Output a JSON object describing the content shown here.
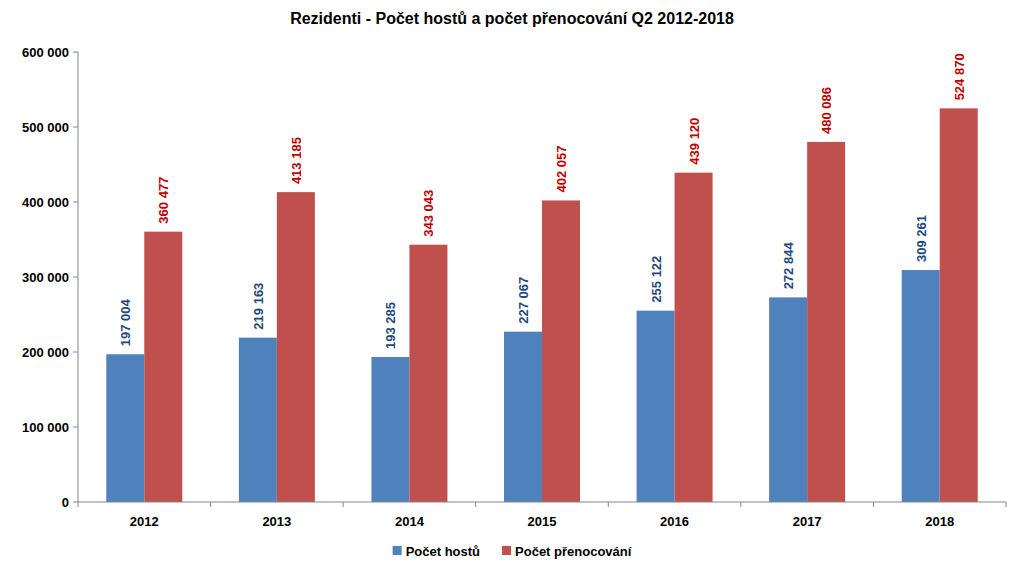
{
  "chart_data": {
    "type": "bar",
    "title": "Rezidenti - Počet hostů a počet přenocování Q2 2012-2018",
    "categories": [
      "2012",
      "2013",
      "2014",
      "2015",
      "2016",
      "2017",
      "2018"
    ],
    "series": [
      {
        "name": "Počet hostů",
        "color": "#4f81bd",
        "values": [
          197004,
          219163,
          193285,
          227067,
          255122,
          272844,
          309261
        ],
        "value_labels": [
          "197 004",
          "219 163",
          "193 285",
          "227 067",
          "255 122",
          "272 844",
          "309 261"
        ]
      },
      {
        "name": "Počet přenocování",
        "color": "#c0504d",
        "values": [
          360477,
          413185,
          343043,
          402057,
          439120,
          480086,
          524870
        ],
        "value_labels": [
          "360 477",
          "413 185",
          "343 043",
          "402 057",
          "439 120",
          "480 086",
          "524 870"
        ]
      }
    ],
    "ylim": [
      0,
      600000
    ],
    "yticks": [
      0,
      {
        "value": 100000,
        "label": "100 000"
      },
      {
        "value": 200000,
        "label": "200 000"
      },
      {
        "value": 300000,
        "label": "300 000"
      },
      {
        "value": 400000,
        "label": "400 000"
      },
      {
        "value": 500000,
        "label": "500 000"
      },
      {
        "value": 600000,
        "label": "600 000"
      }
    ],
    "grid": false,
    "legend": "bottom",
    "data_labels": true
  }
}
